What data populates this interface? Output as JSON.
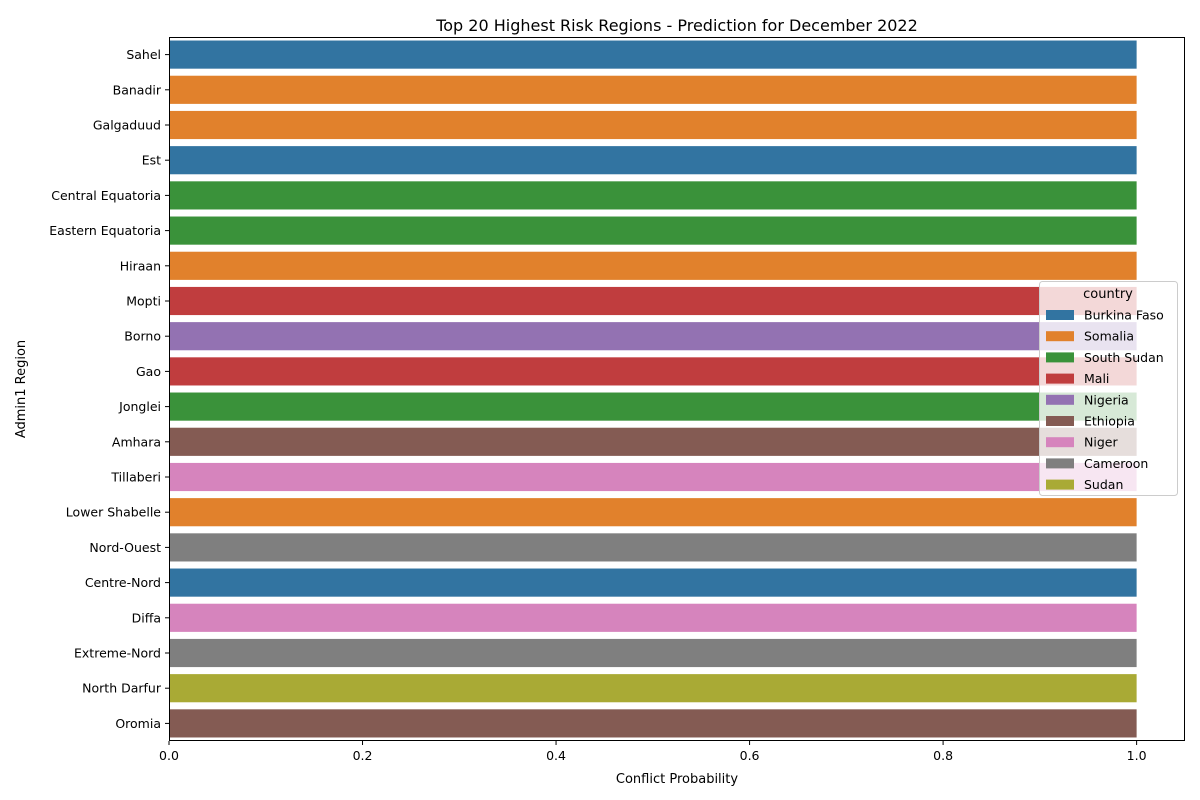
{
  "chart_data": {
    "type": "bar",
    "orientation": "horizontal",
    "title": "Top 20 Highest Risk Regions - Prediction for December 2022",
    "xlabel": "Conflict Probability",
    "ylabel": "Admin1 Region",
    "xlim": [
      0,
      1.05
    ],
    "xticks": [
      "0.0",
      "0.2",
      "0.4",
      "0.6",
      "0.8",
      "1.0"
    ],
    "grid": false,
    "legend": {
      "title": "country",
      "placement": "center-right",
      "entries": [
        {
          "name": "Burkina Faso",
          "color": "#3274a1"
        },
        {
          "name": "Somalia",
          "color": "#e1812c"
        },
        {
          "name": "South Sudan",
          "color": "#3a923a"
        },
        {
          "name": "Mali",
          "color": "#c03d3e"
        },
        {
          "name": "Nigeria",
          "color": "#9372b2"
        },
        {
          "name": "Ethiopia",
          "color": "#845b53"
        },
        {
          "name": "Niger",
          "color": "#d684bd"
        },
        {
          "name": "Cameroon",
          "color": "#7f7f7f"
        },
        {
          "name": "Sudan",
          "color": "#a9aa35"
        }
      ]
    },
    "categories": [
      "Sahel",
      "Banadir",
      "Galgaduud",
      "Est",
      "Central Equatoria",
      "Eastern Equatoria",
      "Hiraan",
      "Mopti",
      "Borno",
      "Gao",
      "Jonglei",
      "Amhara",
      "Tillaberi",
      "Lower Shabelle",
      "Nord-Ouest",
      "Centre-Nord",
      "Diffa",
      "Extreme-Nord",
      "North Darfur",
      "Oromia"
    ],
    "countries": [
      "Burkina Faso",
      "Somalia",
      "Somalia",
      "Burkina Faso",
      "South Sudan",
      "South Sudan",
      "Somalia",
      "Mali",
      "Nigeria",
      "Mali",
      "South Sudan",
      "Ethiopia",
      "Niger",
      "Somalia",
      "Cameroon",
      "Burkina Faso",
      "Niger",
      "Cameroon",
      "Sudan",
      "Ethiopia"
    ],
    "values": [
      1.0,
      1.0,
      1.0,
      1.0,
      1.0,
      1.0,
      1.0,
      1.0,
      1.0,
      1.0,
      1.0,
      1.0,
      1.0,
      1.0,
      1.0,
      1.0,
      1.0,
      1.0,
      1.0,
      1.0
    ]
  }
}
